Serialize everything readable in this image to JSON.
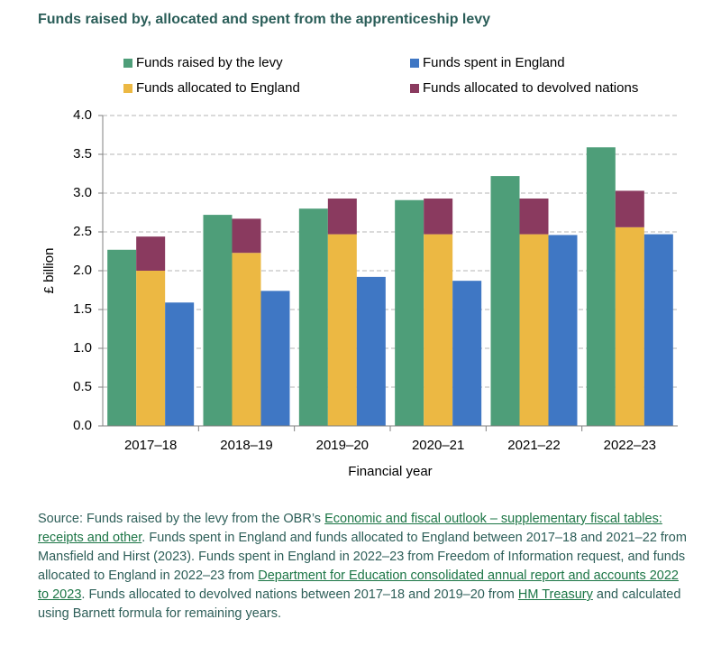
{
  "chart_data": {
    "type": "bar",
    "title": "Funds raised by, allocated and spent from the apprenticeship levy",
    "categories": [
      "2017–18",
      "2018–19",
      "2019–20",
      "2020–21",
      "2021–22",
      "2022–23"
    ],
    "series": [
      {
        "name": "Funds raised by the levy",
        "color": "#4e9e79",
        "values": [
          2.27,
          2.72,
          2.8,
          2.91,
          3.22,
          3.59
        ]
      },
      {
        "name": "Funds allocated to England",
        "color": "#ecb843",
        "values": [
          2.0,
          2.23,
          2.47,
          2.47,
          2.47,
          2.56
        ]
      },
      {
        "name": "Funds allocated to devolved nations",
        "color": "#8a3a5f",
        "values": [
          0.44,
          0.44,
          0.46,
          0.46,
          0.46,
          0.47
        ]
      },
      {
        "name": "Funds spent in England",
        "color": "#3f77c4",
        "values": [
          1.59,
          1.74,
          1.92,
          1.87,
          2.46,
          2.47
        ]
      }
    ],
    "ylim": [
      0,
      4
    ],
    "yticks": [
      {
        "value": 0,
        "label": "0.0"
      },
      {
        "value": 0.5,
        "label": "0.5"
      },
      {
        "value": 1,
        "label": "1.0"
      },
      {
        "value": 1.5,
        "label": "1.5"
      },
      {
        "value": 2,
        "label": "2.0"
      },
      {
        "value": 2.5,
        "label": "2.5"
      },
      {
        "value": 3,
        "label": "3.0"
      },
      {
        "value": 3.5,
        "label": "3.5"
      },
      {
        "value": 4,
        "label": "4.0"
      }
    ],
    "ylabel": "£ billion",
    "xlabel": "Financial year",
    "grid": true
  },
  "source": [
    {
      "text": "Source: Funds raised by the levy from the OBR’s ",
      "link": false
    },
    {
      "text": "Economic and fiscal outlook – supplementary fiscal tables: receipts and other",
      "link": true
    },
    {
      "text": ". Funds spent in England and funds allocated to England between 2017–18 and 2021–22 from Mansfield and Hirst (2023). Funds spent in England in 2022–23 from Freedom of Information request, and funds allocated to England in 2022–23 from ",
      "link": false
    },
    {
      "text": "Department for Education consolidated annual report and accounts 2022 to 2023",
      "link": true
    },
    {
      "text": ". Funds allocated to devolved nations between 2017–18 and 2019–20 from ",
      "link": false
    },
    {
      "text": "HM Treasury",
      "link": true
    },
    {
      "text": " and calculated using Barnett formula for remaining years.",
      "link": false
    }
  ]
}
